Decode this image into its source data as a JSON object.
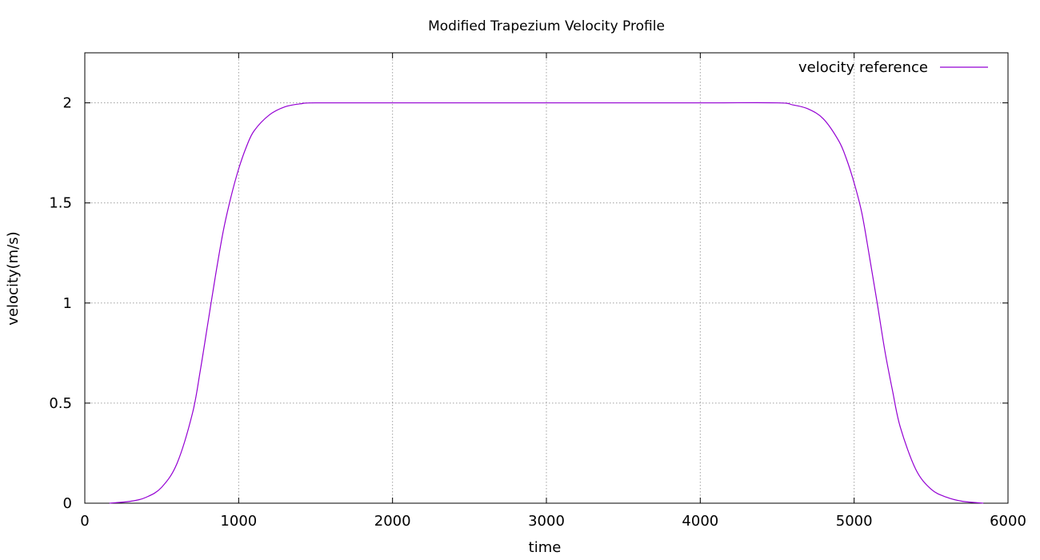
{
  "chart_data": {
    "type": "line",
    "title": "Modified Trapezium Velocity Profile",
    "xlabel": "time",
    "ylabel": "velocity(m/s)",
    "xlim": [
      0,
      6000
    ],
    "ylim": [
      0,
      2.25
    ],
    "xticks": [
      0,
      1000,
      2000,
      3000,
      4000,
      5000,
      6000
    ],
    "xtick_labels": [
      "0",
      "1000",
      "2000",
      "3000",
      "4000",
      "5000",
      "6000"
    ],
    "yticks": [
      0,
      0.5,
      1,
      1.5,
      2
    ],
    "ytick_labels": [
      "0",
      "0.5",
      "1",
      "1.5",
      "2"
    ],
    "grid": true,
    "legend_position": "top-right",
    "series": [
      {
        "name": "velocity reference",
        "color": "#9400d3",
        "x": [
          160,
          300,
          400,
          500,
          600,
          700,
          750,
          800,
          850,
          900,
          950,
          1000,
          1050,
          1100,
          1200,
          1300,
          1400,
          1500,
          2000,
          3000,
          4000,
          4500,
          4600,
          4700,
          4800,
          4900,
          4950,
          5000,
          5050,
          5100,
          5150,
          5200,
          5250,
          5300,
          5400,
          5500,
          5600,
          5700,
          5840
        ],
        "y": [
          0.0,
          0.01,
          0.03,
          0.08,
          0.2,
          0.45,
          0.66,
          0.9,
          1.14,
          1.36,
          1.53,
          1.67,
          1.78,
          1.86,
          1.94,
          1.98,
          1.995,
          2.0,
          2.0,
          2.0,
          2.0,
          2.0,
          1.99,
          1.97,
          1.92,
          1.81,
          1.72,
          1.6,
          1.45,
          1.23,
          1.0,
          0.76,
          0.56,
          0.38,
          0.17,
          0.07,
          0.03,
          0.01,
          0.0
        ]
      }
    ]
  }
}
